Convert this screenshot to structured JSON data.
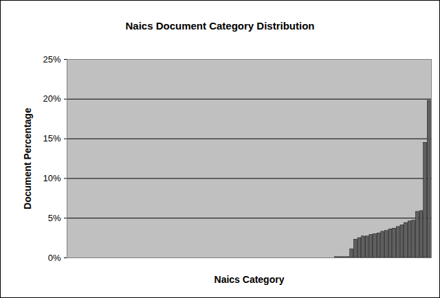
{
  "chart_data": {
    "type": "bar",
    "title": "Naics Document Category Distribution",
    "x_label": "Naics Category",
    "y_label": "Document Percentage",
    "categories": [
      null,
      null,
      null,
      null,
      null,
      null,
      null,
      null,
      null,
      null,
      null,
      null,
      null,
      null,
      null,
      null,
      null,
      null,
      null,
      null,
      null,
      null,
      null,
      null,
      null,
      null,
      null,
      null,
      null,
      null,
      null,
      null,
      null,
      null,
      null,
      null,
      null,
      null,
      null,
      null,
      null,
      null,
      null,
      null,
      null,
      null,
      null,
      null,
      null,
      null,
      null,
      null,
      null,
      null,
      null,
      null,
      null,
      null,
      null,
      null,
      null,
      null,
      null,
      null,
      null,
      null,
      null,
      null,
      null,
      null,
      null,
      null,
      null,
      null,
      null,
      null,
      null,
      null,
      null,
      null,
      null,
      null,
      null,
      null,
      null,
      null,
      null,
      null,
      null,
      null,
      null,
      null,
      null,
      null
    ],
    "values": [
      0,
      0,
      0,
      0,
      0,
      0,
      0,
      0,
      0,
      0,
      0,
      0,
      0,
      0,
      0,
      0,
      0,
      0,
      0,
      0,
      0,
      0,
      0,
      0,
      0,
      0,
      0,
      0,
      0,
      0,
      0,
      0,
      0,
      0,
      0,
      0,
      0,
      0,
      0,
      0,
      0,
      0,
      0,
      0,
      0,
      0,
      0,
      0,
      0,
      0,
      0,
      0,
      0,
      0,
      0,
      0,
      0,
      0,
      0,
      0,
      0,
      0,
      0,
      0,
      0,
      0,
      0,
      0,
      0,
      0.1,
      0.1,
      0.1,
      0.1,
      1.1,
      2.3,
      2.5,
      2.7,
      2.7,
      2.9,
      3.0,
      3.1,
      3.3,
      3.4,
      3.6,
      3.7,
      3.9,
      4.1,
      4.4,
      4.6,
      4.7,
      5.8,
      5.9,
      14.5,
      19.8
    ],
    "color": "#606060",
    "ylim": [
      0,
      25
    ],
    "yticks": [
      {
        "value": 0,
        "label": "0%"
      },
      {
        "value": 5,
        "label": "5%"
      },
      {
        "value": 10,
        "label": "10%"
      },
      {
        "value": 15,
        "label": "15%"
      },
      {
        "value": 20,
        "label": "20%"
      },
      {
        "value": 25,
        "label": "25%"
      }
    ],
    "grid": true,
    "tick_labels": "y"
  }
}
